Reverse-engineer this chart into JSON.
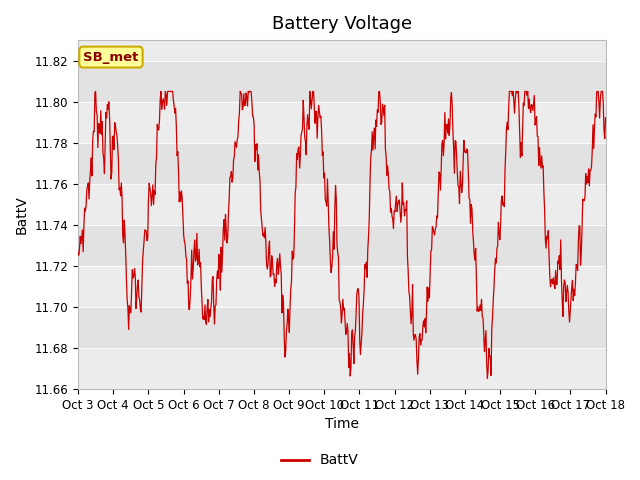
{
  "title": "Battery Voltage",
  "xlabel": "Time",
  "ylabel": "BattV",
  "legend_label": "BattV",
  "annotation_label": "SB_met",
  "ylim": [
    11.66,
    11.83
  ],
  "yticks": [
    11.66,
    11.68,
    11.7,
    11.72,
    11.74,
    11.76,
    11.78,
    11.8,
    11.82
  ],
  "line_color": "#cc0000",
  "fig_bg_color": "#ffffff",
  "band_colors": [
    "#ececec",
    "#e2e2e2"
  ],
  "annotation_bg": "#ffff99",
  "annotation_edge": "#ccaa00",
  "annotation_text_color": "#8b0000",
  "title_fontsize": 13,
  "label_fontsize": 10,
  "tick_fontsize": 8.5,
  "start_day": 3,
  "end_day": 18,
  "x_days": [
    3,
    4,
    5,
    6,
    7,
    8,
    9,
    10,
    11,
    12,
    13,
    14,
    15,
    16,
    17,
    18
  ],
  "x_labels": [
    "Oct 3",
    "Oct 4",
    "Oct 5",
    "Oct 6",
    "Oct 7",
    "Oct 8",
    "Oct 9",
    "Oct 10",
    "Oct 11",
    "Oct 12",
    "Oct 13",
    "Oct 14",
    "Oct 15",
    "Oct 16",
    "Oct 17",
    "Oct 18"
  ]
}
